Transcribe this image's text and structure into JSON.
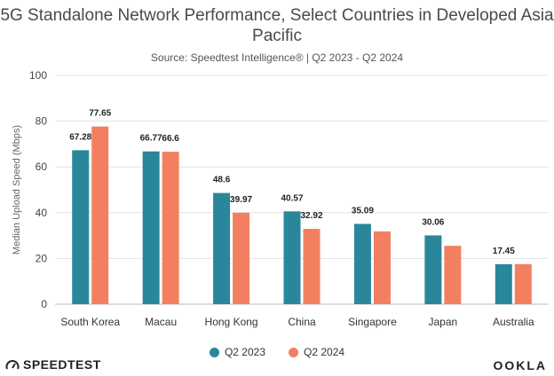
{
  "title": "5G Standalone Network Performance, Select Countries in Developed Asia Pacific",
  "subtitle": "Source: Speedtest Intelligence® | Q2 2023 - Q2 2024",
  "brand_left": "SPEEDTEST",
  "brand_right": "OOKLA",
  "colors": {
    "q2_2023": "#2a879b",
    "q2_2024": "#f28060",
    "grid": "#e3e3e3",
    "axis": "#bbbbbb"
  },
  "chart_data": {
    "type": "bar",
    "categories": [
      "South Korea",
      "Macau",
      "Hong Kong",
      "China",
      "Singapore",
      "Japan",
      "Australia"
    ],
    "series": [
      {
        "name": "Q2 2023",
        "values": [
          67.28,
          66.77,
          48.6,
          40.57,
          35.09,
          30.06,
          17.45
        ],
        "labels": [
          "67.28",
          "66.77",
          "48.6",
          "40.57",
          "35.09",
          "30.06",
          "17.45"
        ]
      },
      {
        "name": "Q2 2024",
        "values": [
          77.65,
          66.6,
          39.97,
          32.92,
          31.8,
          25.5,
          17.5
        ],
        "labels": [
          "77.65",
          "66.6",
          "39.97",
          "32.92",
          "",
          "",
          ""
        ]
      }
    ],
    "ylabel": "Median Upload Speed (Mbps)",
    "xlabel": "",
    "ylim": [
      0,
      100
    ],
    "yticks": [
      0,
      20,
      40,
      60,
      80,
      100
    ],
    "grid": true,
    "legend": "bottom"
  }
}
